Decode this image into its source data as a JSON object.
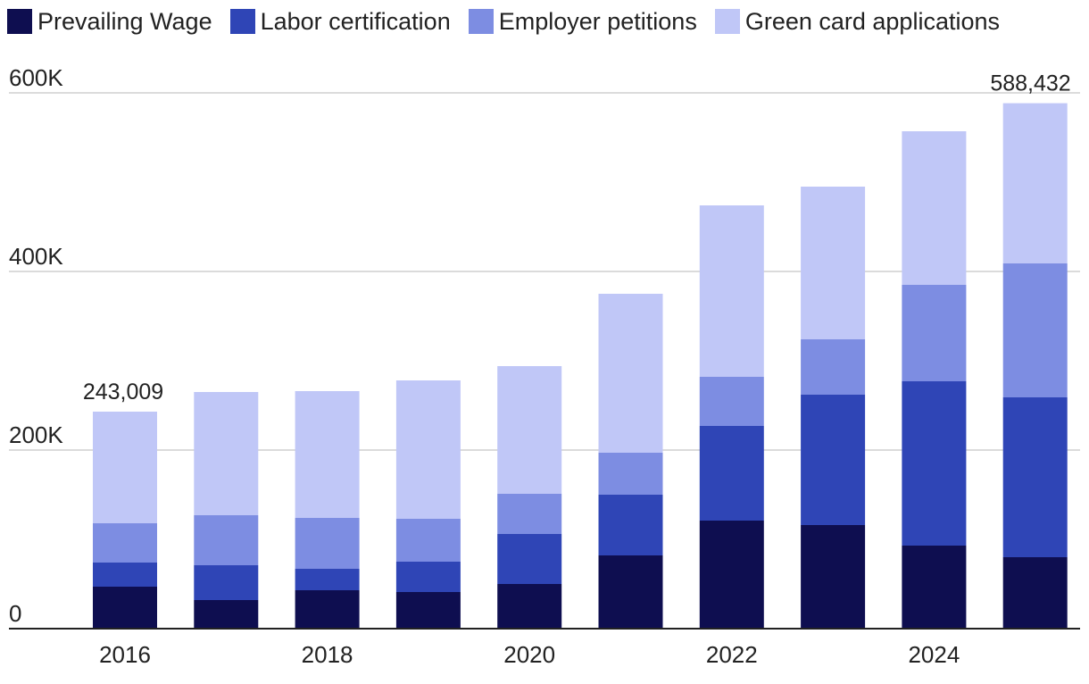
{
  "chart_data": {
    "type": "bar",
    "stacked": true,
    "categories": [
      "2016",
      "2017",
      "2018",
      "2019",
      "2020",
      "2021",
      "2022",
      "2023",
      "2024",
      "2025"
    ],
    "x_tick_labels": [
      "2016",
      "",
      "2018",
      "",
      "2020",
      "",
      "2022",
      "",
      "2024",
      ""
    ],
    "series": [
      {
        "name": "Prevailing Wage",
        "color": "#0e0e50",
        "values": [
          47000,
          32000,
          43000,
          41000,
          50000,
          82000,
          121000,
          116000,
          93000,
          80000
        ]
      },
      {
        "name": "Labor certification",
        "color": "#2f45b6",
        "values": [
          27000,
          39000,
          24000,
          34000,
          56000,
          68000,
          106000,
          146000,
          184000,
          179000
        ]
      },
      {
        "name": "Employer petitions",
        "color": "#7d8de2",
        "values": [
          44000,
          56000,
          57000,
          48000,
          45000,
          47000,
          55000,
          62000,
          108000,
          150000
        ]
      },
      {
        "name": "Green card applications",
        "color": "#c0c7f7",
        "values": [
          125009,
          138000,
          142000,
          155000,
          143000,
          178000,
          192000,
          171000,
          172000,
          179432
        ]
      }
    ],
    "ylim": [
      0,
      600000
    ],
    "y_ticks": [
      0,
      200000,
      400000,
      600000
    ],
    "y_tick_labels": [
      "0",
      "200K",
      "400K",
      "600K"
    ],
    "annotations": [
      {
        "category": "2016",
        "text": "243,009"
      },
      {
        "category": "2025",
        "text": "588,432"
      }
    ],
    "grid": true,
    "legend_position": "top-left",
    "title": "",
    "xlabel": "",
    "ylabel": ""
  }
}
